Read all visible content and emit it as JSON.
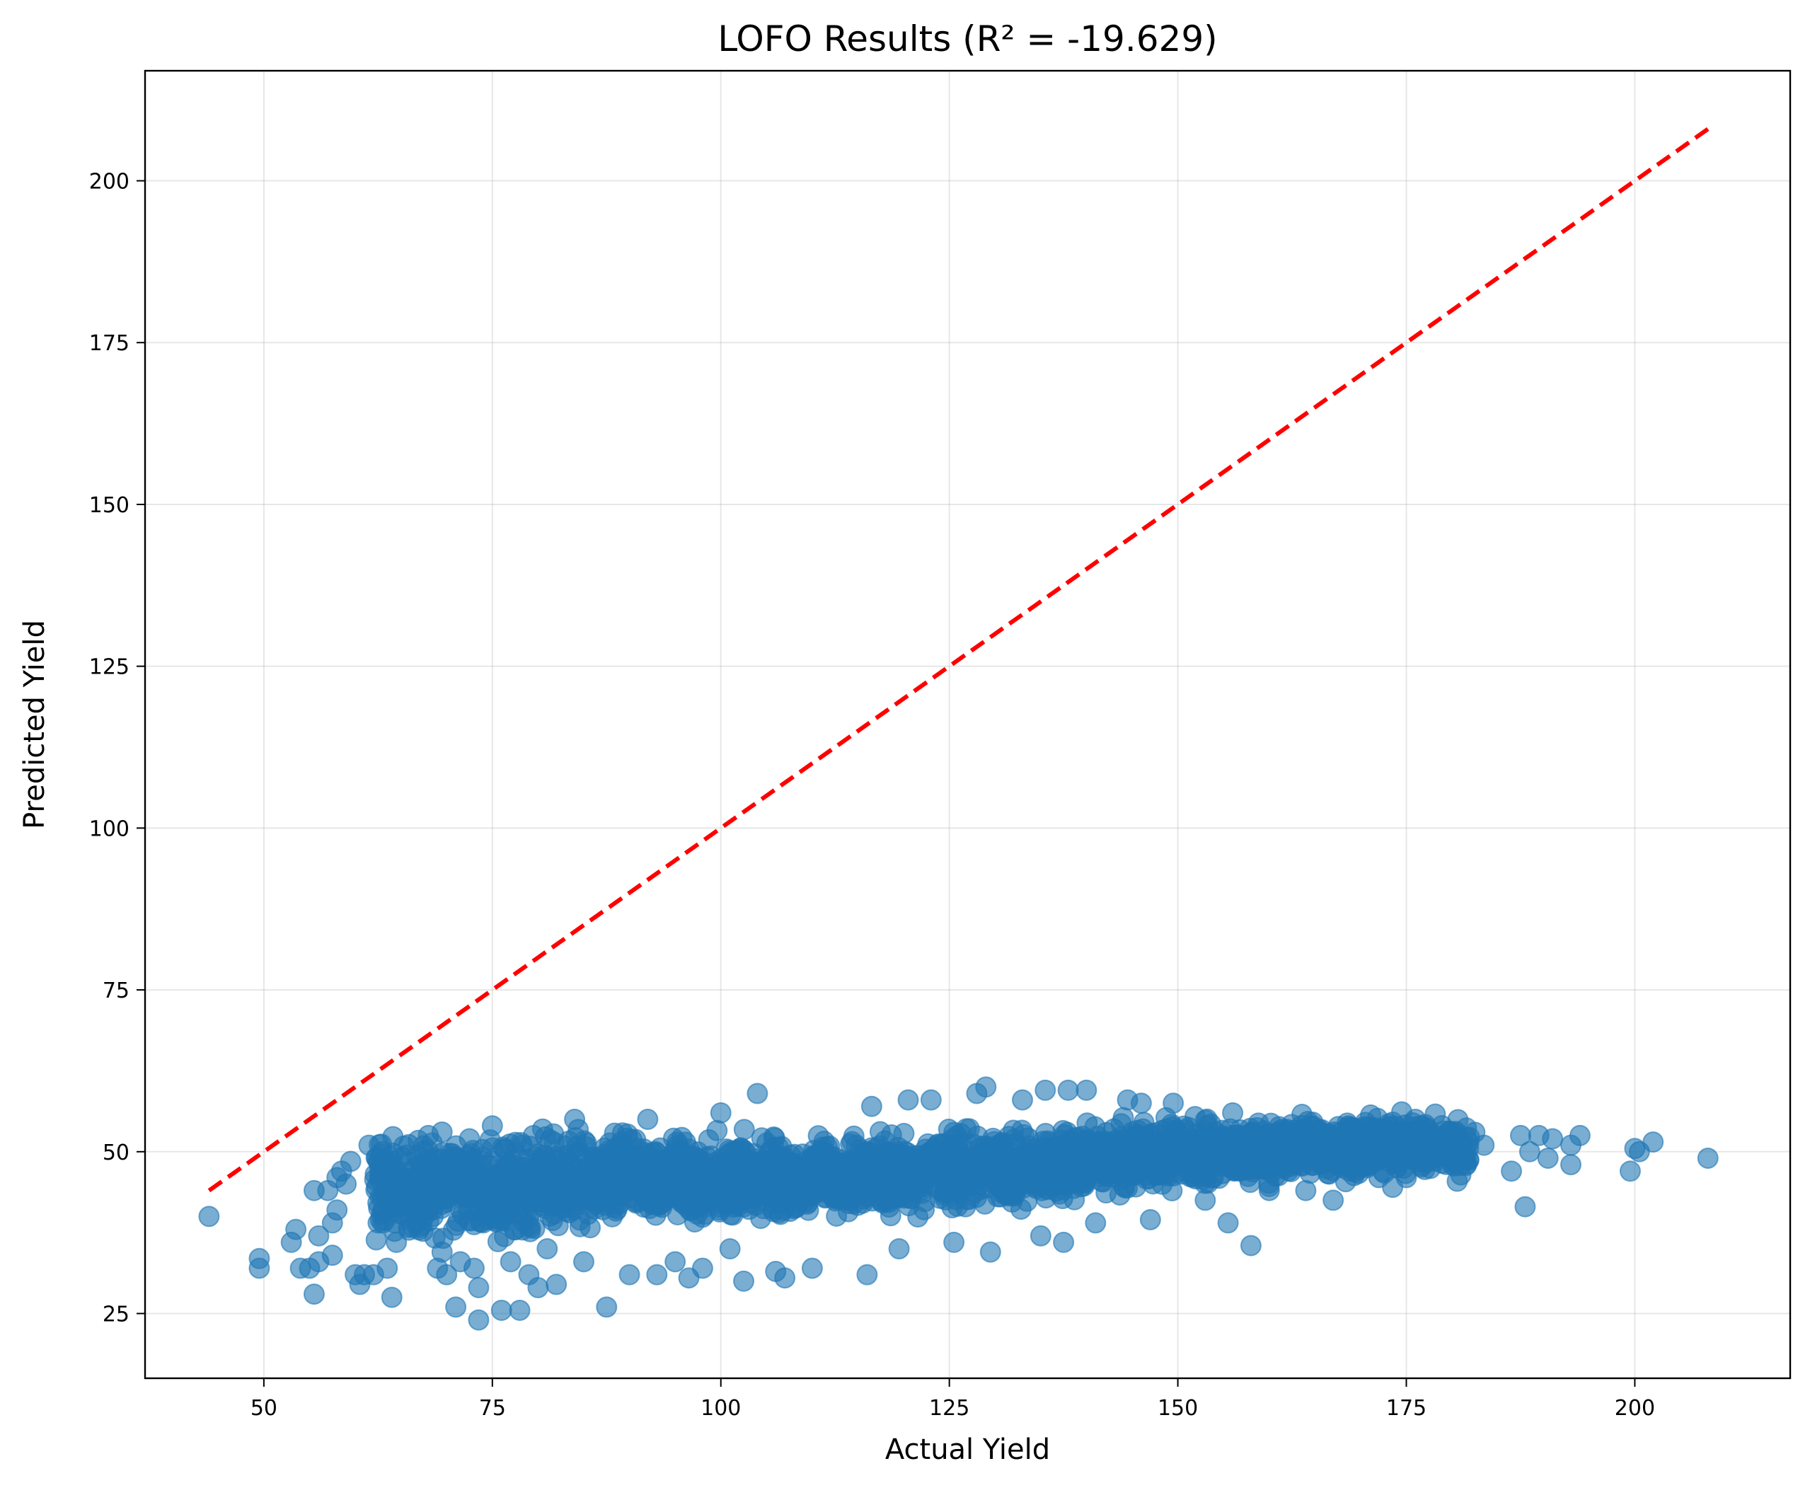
{
  "chart_data": {
    "type": "scatter",
    "title": "LOFO  Results (R² = -19.629)",
    "xlabel": "Actual Yield",
    "ylabel": "Predicted Yield",
    "xlim": [
      37,
      217
    ],
    "ylim": [
      15,
      217
    ],
    "x_ticks": [
      50,
      75,
      100,
      125,
      150,
      175,
      200
    ],
    "y_ticks": [
      25,
      50,
      75,
      100,
      125,
      150,
      175,
      200
    ],
    "x_tick_labels": [
      "50",
      "75",
      "100",
      "125",
      "150",
      "175",
      "200"
    ],
    "y_tick_labels": [
      "25",
      "50",
      "75",
      "100",
      "125",
      "150",
      "175",
      "200"
    ],
    "grid": true,
    "point_color": "#1f77b4",
    "reference_line": {
      "style": "dashed",
      "color": "#ff0000",
      "from": [
        44,
        44
      ],
      "to": [
        208,
        208
      ]
    },
    "series": [
      {
        "values": [
          [
            44,
            40
          ],
          [
            49.5,
            32
          ],
          [
            49.5,
            33.5
          ],
          [
            53,
            36
          ],
          [
            53.5,
            38
          ],
          [
            54,
            32
          ],
          [
            55,
            32
          ],
          [
            55.5,
            28
          ],
          [
            55.5,
            44
          ],
          [
            56,
            37
          ],
          [
            56,
            33
          ],
          [
            57,
            44
          ],
          [
            57.5,
            39
          ],
          [
            57.5,
            34
          ],
          [
            58,
            41
          ],
          [
            58,
            46
          ],
          [
            58.5,
            47
          ],
          [
            59,
            45
          ],
          [
            59.5,
            48.5
          ],
          [
            60,
            31
          ],
          [
            60.5,
            29.5
          ],
          [
            61,
            31
          ],
          [
            61.5,
            51
          ],
          [
            62,
            31
          ],
          [
            62.5,
            39
          ],
          [
            63,
            43
          ],
          [
            63,
            39
          ],
          [
            63.5,
            32
          ],
          [
            63.5,
            47.5
          ],
          [
            64,
            27.5
          ],
          [
            64.5,
            36
          ],
          [
            65,
            46
          ],
          [
            65.5,
            44
          ],
          [
            66,
            39.5
          ],
          [
            66.5,
            43
          ],
          [
            67,
            41
          ],
          [
            68,
            52.5
          ],
          [
            68.5,
            49
          ],
          [
            69,
            32
          ],
          [
            69.5,
            34.5
          ],
          [
            70,
            31
          ],
          [
            71,
            26
          ],
          [
            71.5,
            33
          ],
          [
            72.5,
            52
          ],
          [
            73,
            32
          ],
          [
            73.5,
            29
          ],
          [
            73.5,
            24
          ],
          [
            74,
            39
          ],
          [
            75,
            54
          ],
          [
            76,
            25.5
          ],
          [
            77,
            33
          ],
          [
            78,
            25.5
          ],
          [
            79,
            31
          ],
          [
            80,
            29
          ],
          [
            80.5,
            53.5
          ],
          [
            81,
            35
          ],
          [
            82,
            29.5
          ],
          [
            84,
            55
          ],
          [
            85,
            33
          ],
          [
            87.5,
            26
          ],
          [
            90,
            31
          ],
          [
            92,
            55
          ],
          [
            93,
            31
          ],
          [
            95,
            33
          ],
          [
            96.5,
            30.5
          ],
          [
            98,
            32
          ],
          [
            100,
            56
          ],
          [
            101,
            35
          ],
          [
            102.5,
            30
          ],
          [
            104,
            59
          ],
          [
            106,
            31.5
          ],
          [
            107,
            30.5
          ],
          [
            110,
            32
          ],
          [
            116,
            31
          ],
          [
            116.5,
            57
          ],
          [
            119.5,
            35
          ],
          [
            120.5,
            58
          ],
          [
            123,
            58
          ],
          [
            125.5,
            36
          ],
          [
            128,
            59
          ],
          [
            129,
            60
          ],
          [
            129.5,
            34.5
          ],
          [
            133,
            58
          ],
          [
            135,
            37
          ],
          [
            135.5,
            59.5
          ],
          [
            137.5,
            36
          ],
          [
            138,
            59.5
          ],
          [
            140,
            59.5
          ],
          [
            141,
            39
          ],
          [
            144.5,
            58
          ],
          [
            146,
            57.5
          ],
          [
            147,
            39.5
          ],
          [
            149.5,
            57.5
          ],
          [
            153,
            42.5
          ],
          [
            155.5,
            39
          ],
          [
            156,
            56
          ],
          [
            158,
            35.5
          ],
          [
            160,
            44
          ],
          [
            164,
            44
          ],
          [
            167,
            42.5
          ],
          [
            172,
            46
          ],
          [
            173.5,
            44.5
          ],
          [
            175,
            46
          ],
          [
            176,
            55
          ],
          [
            178.5,
            50.5
          ],
          [
            181,
            50
          ],
          [
            182.5,
            53
          ],
          [
            183.5,
            51
          ],
          [
            186.5,
            47
          ],
          [
            187.5,
            52.5
          ],
          [
            188,
            41.5
          ],
          [
            188.5,
            50
          ],
          [
            189.5,
            52.5
          ],
          [
            190.5,
            49
          ],
          [
            191,
            52
          ],
          [
            193,
            48
          ],
          [
            193,
            51
          ],
          [
            194,
            52.5
          ],
          [
            199.5,
            47
          ],
          [
            200,
            50.5
          ],
          [
            200.5,
            50
          ],
          [
            202,
            51.5
          ],
          [
            208,
            49
          ]
        ]
      }
    ],
    "dense_band": [
      [
        62,
        44
      ],
      [
        65,
        45
      ],
      [
        68,
        44.5
      ],
      [
        71,
        45.5
      ],
      [
        74,
        44
      ],
      [
        77,
        45
      ],
      [
        80,
        45
      ],
      [
        83,
        45.5
      ],
      [
        86,
        45
      ],
      [
        89,
        46
      ],
      [
        92,
        45.5
      ],
      [
        95,
        46
      ],
      [
        98,
        45
      ],
      [
        101,
        46
      ],
      [
        104,
        46
      ],
      [
        107,
        45.5
      ],
      [
        110,
        46.5
      ],
      [
        113,
        46
      ],
      [
        116,
        46.5
      ],
      [
        119,
        46.5
      ],
      [
        122,
        47
      ],
      [
        125,
        47
      ],
      [
        128,
        47.5
      ],
      [
        131,
        47.5
      ],
      [
        134,
        48
      ],
      [
        137,
        48
      ],
      [
        140,
        48.5
      ],
      [
        143,
        49
      ],
      [
        146,
        49
      ],
      [
        149,
        49.5
      ],
      [
        152,
        50
      ],
      [
        155,
        50
      ],
      [
        158,
        50
      ],
      [
        161,
        50.5
      ],
      [
        164,
        50.5
      ],
      [
        167,
        50.5
      ],
      [
        170,
        50.5
      ],
      [
        173,
        51
      ],
      [
        176,
        51
      ],
      [
        179,
        50.5
      ],
      [
        182,
        50.5
      ]
    ]
  }
}
